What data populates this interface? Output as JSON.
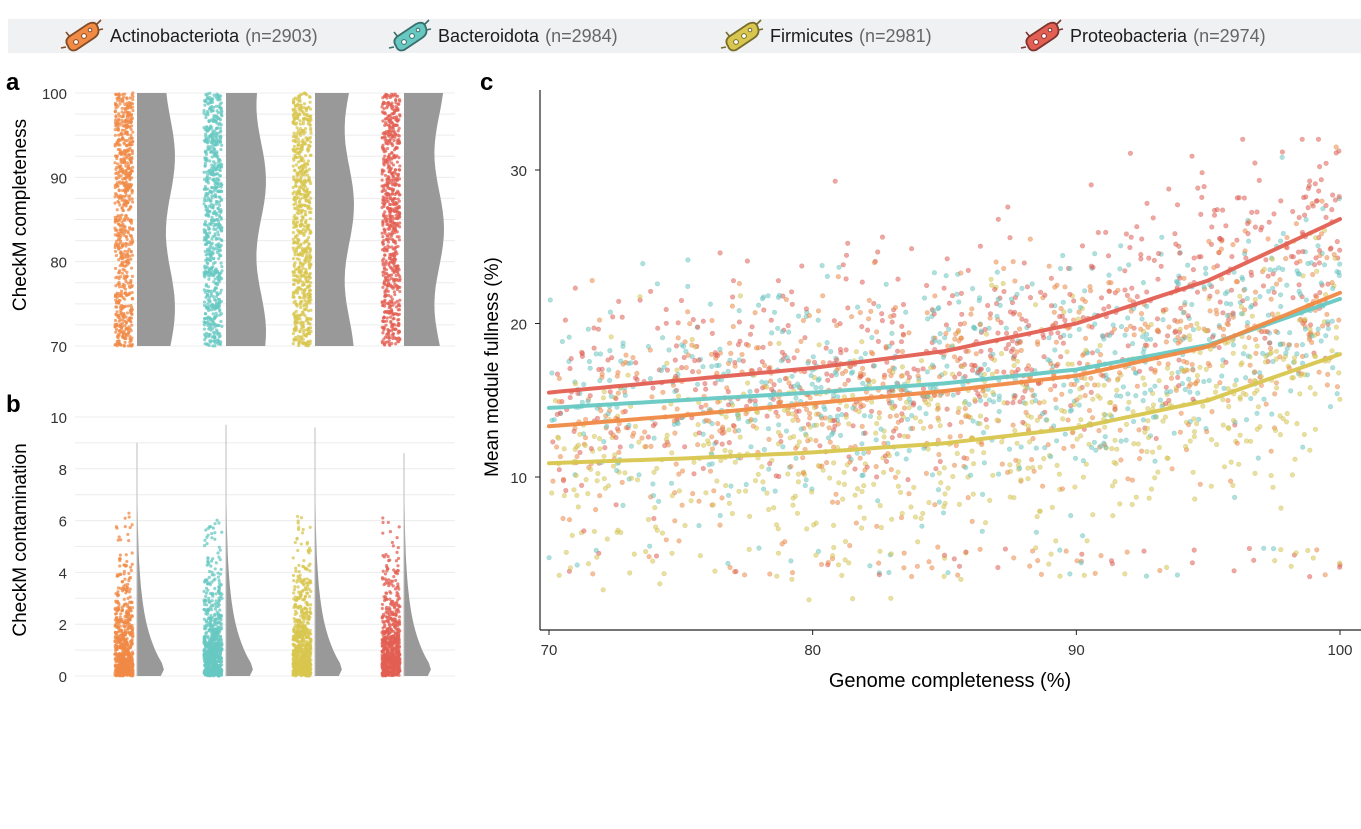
{
  "legend": [
    {
      "name": "Actinobacteriota",
      "count": "(n=2903)",
      "color": "#f08a45",
      "icon": "bacterium-icon"
    },
    {
      "name": "Bacteroidota",
      "count": "(n=2984)",
      "color": "#67c8c2",
      "icon": "bacterium-icon"
    },
    {
      "name": "Firmicutes",
      "count": "(n=2981)",
      "color": "#d8c64e",
      "icon": "bacterium-icon"
    },
    {
      "name": "Proteobacteria",
      "count": "(n=2974)",
      "color": "#e35f53",
      "icon": "bacterium-icon"
    }
  ],
  "panels": {
    "a": "a",
    "b": "b",
    "c": "c"
  },
  "chart_data": [
    {
      "panel": "a",
      "type": "scatter",
      "ylabel": "CheckM completeness",
      "ylim": [
        70,
        100
      ],
      "yticks": [
        70,
        80,
        90,
        100
      ],
      "categories": [
        "Actinobacteriota",
        "Bacteroidota",
        "Firmicutes",
        "Proteobacteria"
      ],
      "note_distribution": "jittered points with half-violin density, values spanning 70-100",
      "density_color": "#999999"
    },
    {
      "panel": "b",
      "type": "scatter",
      "ylabel": "CheckM contamination",
      "ylim": [
        0,
        10
      ],
      "yticks": [
        0,
        2,
        4,
        6,
        8,
        10
      ],
      "categories": [
        "Actinobacteriota",
        "Bacteroidota",
        "Firmicutes",
        "Proteobacteria"
      ],
      "max_values": [
        9.0,
        9.7,
        9.6,
        8.6
      ],
      "density_color": "#999999"
    },
    {
      "panel": "c",
      "type": "scatter",
      "xlabel": "Genome completeness (%)",
      "ylabel": "Mean module fullness (%)",
      "xlim": [
        70,
        100
      ],
      "ylim": [
        0,
        35
      ],
      "xticks": [
        70,
        80,
        90,
        100
      ],
      "yticks": [
        10,
        20,
        30
      ],
      "trend_series": [
        {
          "name": "Proteobacteria",
          "color": "#e35f53",
          "x": [
            70,
            75,
            80,
            85,
            90,
            95,
            100
          ],
          "y": [
            15.5,
            16.3,
            17.1,
            18.2,
            20.0,
            22.8,
            26.8
          ]
        },
        {
          "name": "Bacteroidota",
          "color": "#67c8c2",
          "x": [
            70,
            75,
            80,
            85,
            90,
            95,
            100
          ],
          "y": [
            14.5,
            15.0,
            15.5,
            16.1,
            17.0,
            18.6,
            21.6
          ]
        },
        {
          "name": "Actinobacteriota",
          "color": "#f08a45",
          "x": [
            70,
            75,
            80,
            85,
            90,
            95,
            100
          ],
          "y": [
            13.3,
            14.0,
            14.8,
            15.6,
            16.6,
            18.5,
            22.0
          ]
        },
        {
          "name": "Firmicutes",
          "color": "#d8c64e",
          "x": [
            70,
            75,
            80,
            85,
            90,
            95,
            100
          ],
          "y": [
            10.9,
            11.2,
            11.6,
            12.2,
            13.2,
            15.0,
            18.0
          ]
        }
      ]
    }
  ]
}
